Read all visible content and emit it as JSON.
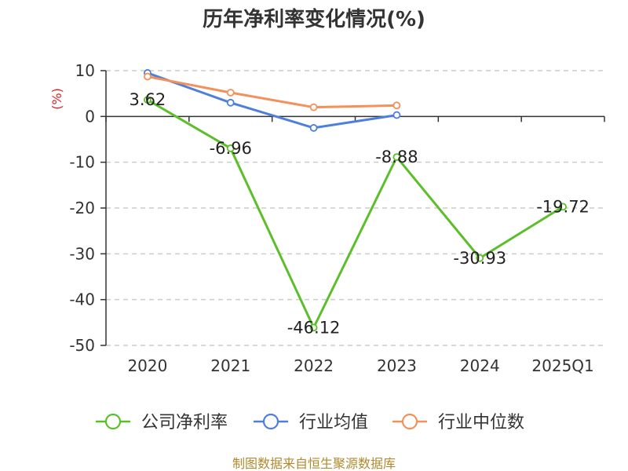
{
  "chart_data": {
    "type": "line",
    "title": "历年净利率变化情况(%)",
    "ylabel": "(%)",
    "xlabel": "",
    "categories": [
      "2020",
      "2021",
      "2022",
      "2023",
      "2024",
      "2025Q1"
    ],
    "ylim": [
      -50,
      10
    ],
    "yticks": [
      10,
      0,
      -10,
      -20,
      -30,
      -40,
      -50
    ],
    "grid": true,
    "legend_position": "bottom",
    "series": [
      {
        "name": "公司净利率",
        "color": "#5cbf2a",
        "values": [
          3.62,
          -6.96,
          -46.12,
          -8.88,
          -30.93,
          -19.72
        ],
        "labels": [
          "3.62",
          "-6.96",
          "-46.12",
          "-8.88",
          "-30.93",
          "-19.72"
        ]
      },
      {
        "name": "行业均值",
        "color": "#4f7fdc",
        "values": [
          9.5,
          3.0,
          -2.5,
          0.3,
          null,
          null
        ]
      },
      {
        "name": "行业中位数",
        "color": "#f4915a",
        "values": [
          8.7,
          5.2,
          2.0,
          2.4,
          null,
          null
        ]
      }
    ]
  },
  "source": "制图数据来自恒生聚源数据库"
}
